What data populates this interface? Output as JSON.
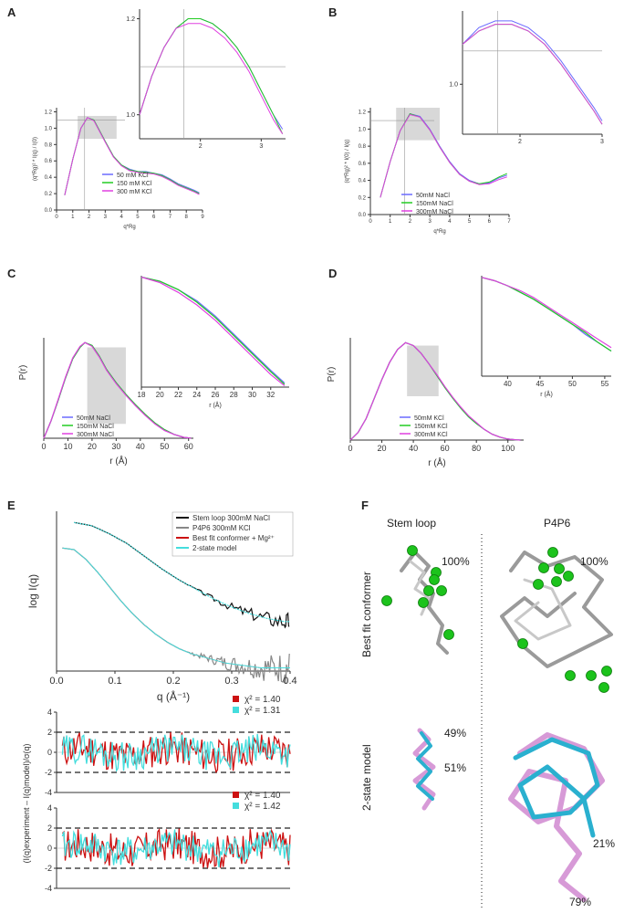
{
  "panels": {
    "A": "A",
    "B": "B",
    "C": "C",
    "D": "D",
    "E": "E",
    "F": "F"
  },
  "colors": {
    "blue": "#6a6aff",
    "green": "#22cc22",
    "magenta": "#e040e0",
    "black": "#111111",
    "gray": "#888888",
    "red": "#cc1111",
    "cyan": "#44dddd",
    "shade": "#d8d8d8"
  },
  "chart_data": [
    {
      "id": "A",
      "type": "line",
      "xlabel": "q*Rg",
      "ylabel": "(q*Rg)² * I(q) / I(0)",
      "xlim": [
        0,
        9
      ],
      "ylim": [
        0,
        1.25
      ],
      "xticks": [
        "0",
        "1",
        "2",
        "3",
        "4",
        "5",
        "6",
        "7",
        "8",
        "9"
      ],
      "yticks": [
        "0.0",
        "0.2",
        "0.4",
        "0.6",
        "0.8",
        "1.0",
        "1.2"
      ],
      "x": [
        0.5,
        1.0,
        1.5,
        1.9,
        2.3,
        3.0,
        3.5,
        4.0,
        4.5,
        5.0,
        5.5,
        6.0,
        6.5,
        7.0,
        7.5,
        8.0,
        8.5,
        8.8
      ],
      "series": [
        {
          "name": "50 mM KCl",
          "values": [
            0.18,
            0.62,
            1.0,
            1.13,
            1.1,
            0.84,
            0.66,
            0.55,
            0.5,
            0.47,
            0.47,
            0.45,
            0.43,
            0.38,
            0.32,
            0.28,
            0.24,
            0.21
          ]
        },
        {
          "name": "150 mM KCl",
          "values": [
            0.18,
            0.62,
            1.0,
            1.13,
            1.1,
            0.84,
            0.66,
            0.55,
            0.49,
            0.47,
            0.46,
            0.45,
            0.42,
            0.37,
            0.31,
            0.27,
            0.23,
            0.2
          ]
        },
        {
          "name": "300 mM KCl",
          "values": [
            0.18,
            0.62,
            1.0,
            1.13,
            1.09,
            0.83,
            0.65,
            0.54,
            0.48,
            0.46,
            0.45,
            0.44,
            0.41,
            0.36,
            0.3,
            0.26,
            0.22,
            0.19
          ]
        }
      ],
      "inset": {
        "xlim": [
          1.0,
          3.4
        ],
        "ylim": [
          0.95,
          1.22
        ],
        "xticks": [
          "2",
          "3"
        ],
        "yticks": [
          "1.0",
          "1.2"
        ],
        "x": [
          1.0,
          1.2,
          1.4,
          1.6,
          1.8,
          2.0,
          2.2,
          2.4,
          2.6,
          2.8,
          3.0,
          3.2,
          3.35
        ],
        "series": [
          {
            "name": "50 mM KCl",
            "values": [
              1.0,
              1.08,
              1.14,
              1.18,
              1.2,
              1.2,
              1.19,
              1.17,
              1.14,
              1.1,
              1.05,
              1.0,
              0.97
            ]
          },
          {
            "name": "150 mM KCl",
            "values": [
              1.0,
              1.08,
              1.14,
              1.18,
              1.2,
              1.2,
              1.19,
              1.17,
              1.14,
              1.1,
              1.05,
              1.0,
              0.96
            ]
          },
          {
            "name": "300 mM KCl",
            "values": [
              1.0,
              1.08,
              1.14,
              1.18,
              1.19,
              1.19,
              1.18,
              1.16,
              1.13,
              1.09,
              1.04,
              0.99,
              0.96
            ]
          }
        ]
      }
    },
    {
      "id": "B",
      "type": "line",
      "xlabel": "q*Rg",
      "ylabel": "(q*Rg)² * I(0) / I(q)",
      "xlim": [
        0,
        7
      ],
      "ylim": [
        0,
        1.25
      ],
      "xticks": [
        "0",
        "1",
        "2",
        "3",
        "4",
        "5",
        "6",
        "7"
      ],
      "yticks": [
        "0.0",
        "0.2",
        "0.4",
        "0.6",
        "0.8",
        "1.0",
        "1.2"
      ],
      "x": [
        0.5,
        1.0,
        1.5,
        2.0,
        2.5,
        3.0,
        3.5,
        4.0,
        4.5,
        5.0,
        5.5,
        6.0,
        6.5,
        6.9
      ],
      "series": [
        {
          "name": "50mM NaCl",
          "values": [
            0.2,
            0.62,
            0.98,
            1.18,
            1.15,
            1.0,
            0.8,
            0.62,
            0.48,
            0.4,
            0.36,
            0.37,
            0.43,
            0.46
          ]
        },
        {
          "name": "150mM NaCl",
          "values": [
            0.2,
            0.62,
            0.98,
            1.18,
            1.14,
            0.99,
            0.79,
            0.61,
            0.47,
            0.39,
            0.36,
            0.38,
            0.44,
            0.48
          ]
        },
        {
          "name": "300mM NaCl",
          "values": [
            0.2,
            0.62,
            0.98,
            1.17,
            1.14,
            0.99,
            0.79,
            0.61,
            0.47,
            0.39,
            0.35,
            0.36,
            0.41,
            0.44
          ]
        }
      ],
      "inset": {
        "xlim": [
          1.3,
          3.0
        ],
        "ylim": [
          0.85,
          1.22
        ],
        "xticks": [
          "2",
          "3"
        ],
        "yticks": [
          "1.0"
        ],
        "x": [
          1.3,
          1.5,
          1.7,
          1.9,
          2.1,
          2.3,
          2.5,
          2.7,
          2.9,
          3.0
        ],
        "series": [
          {
            "name": "50mM NaCl",
            "values": [
              1.12,
              1.17,
              1.19,
              1.19,
              1.17,
              1.13,
              1.07,
              1.0,
              0.93,
              0.89
            ]
          },
          {
            "name": "150mM NaCl",
            "values": [
              1.12,
              1.16,
              1.18,
              1.18,
              1.16,
              1.12,
              1.06,
              0.99,
              0.92,
              0.88
            ]
          },
          {
            "name": "300mM NaCl",
            "values": [
              1.12,
              1.16,
              1.18,
              1.18,
              1.16,
              1.12,
              1.06,
              0.99,
              0.92,
              0.88
            ]
          }
        ]
      }
    },
    {
      "id": "C",
      "type": "line",
      "xlabel": "r (Å)",
      "ylabel": "P(r)",
      "xlim": [
        0,
        62
      ],
      "ylim": [
        0,
        1.05
      ],
      "xticks": [
        "0",
        "10",
        "20",
        "30",
        "40",
        "50",
        "60"
      ],
      "x": [
        0,
        3,
        6,
        9,
        12,
        15,
        17,
        20,
        23,
        26,
        30,
        34,
        38,
        42,
        46,
        50,
        54,
        58,
        61
      ],
      "series": [
        {
          "name": "50mM NaCl",
          "values": [
            0,
            0.18,
            0.4,
            0.63,
            0.83,
            0.95,
            1.0,
            0.97,
            0.86,
            0.72,
            0.58,
            0.46,
            0.35,
            0.25,
            0.16,
            0.09,
            0.04,
            0.01,
            0
          ]
        },
        {
          "name": "150mM NaCl",
          "values": [
            0,
            0.18,
            0.4,
            0.63,
            0.83,
            0.95,
            1.0,
            0.97,
            0.86,
            0.72,
            0.58,
            0.46,
            0.35,
            0.25,
            0.16,
            0.09,
            0.04,
            0.01,
            0
          ]
        },
        {
          "name": "300mM NaCl",
          "values": [
            0,
            0.18,
            0.41,
            0.64,
            0.84,
            0.96,
            1.0,
            0.96,
            0.85,
            0.71,
            0.57,
            0.45,
            0.34,
            0.24,
            0.15,
            0.08,
            0.04,
            0.01,
            0
          ]
        }
      ],
      "inset": {
        "xlabel": "r (Å)",
        "xlim": [
          18,
          34
        ],
        "ylim": [
          0.2,
          1.0
        ],
        "xticks": [
          "18",
          "20",
          "22",
          "24",
          "26",
          "28",
          "30",
          "32"
        ],
        "x": [
          18,
          20,
          22,
          24,
          26,
          28,
          30,
          32,
          33.5
        ],
        "series": [
          {
            "name": "50mM NaCl",
            "values": [
              0.99,
              0.96,
              0.9,
              0.82,
              0.71,
              0.58,
              0.45,
              0.32,
              0.23
            ]
          },
          {
            "name": "150mM NaCl",
            "values": [
              0.99,
              0.96,
              0.9,
              0.81,
              0.7,
              0.57,
              0.44,
              0.31,
              0.22
            ]
          },
          {
            "name": "300mM NaCl",
            "values": [
              0.99,
              0.95,
              0.88,
              0.79,
              0.68,
              0.55,
              0.42,
              0.29,
              0.21
            ]
          }
        ]
      }
    },
    {
      "id": "D",
      "type": "line",
      "xlabel": "r (Å)",
      "ylabel": "P(r)",
      "xlim": [
        0,
        110
      ],
      "ylim": [
        0,
        1.05
      ],
      "xticks": [
        "0",
        "20",
        "40",
        "60",
        "80",
        "100"
      ],
      "x": [
        0,
        5,
        10,
        15,
        20,
        25,
        30,
        35,
        40,
        45,
        50,
        55,
        60,
        65,
        70,
        75,
        80,
        85,
        90,
        95,
        100,
        105,
        108
      ],
      "series": [
        {
          "name": "50mM KCl",
          "values": [
            0,
            0.08,
            0.22,
            0.42,
            0.62,
            0.8,
            0.93,
            1.0,
            0.97,
            0.89,
            0.78,
            0.66,
            0.54,
            0.43,
            0.33,
            0.24,
            0.17,
            0.11,
            0.06,
            0.03,
            0.01,
            0.003,
            0
          ]
        },
        {
          "name": "150mM KCl",
          "values": [
            0,
            0.08,
            0.22,
            0.42,
            0.62,
            0.8,
            0.93,
            1.0,
            0.97,
            0.89,
            0.78,
            0.66,
            0.54,
            0.43,
            0.33,
            0.24,
            0.17,
            0.11,
            0.06,
            0.03,
            0.01,
            0.003,
            0
          ]
        },
        {
          "name": "300mM KCl",
          "values": [
            0,
            0.08,
            0.22,
            0.42,
            0.62,
            0.8,
            0.93,
            1.0,
            0.97,
            0.89,
            0.78,
            0.67,
            0.55,
            0.44,
            0.34,
            0.25,
            0.18,
            0.11,
            0.06,
            0.03,
            0.01,
            0.003,
            0
          ]
        }
      ],
      "inset": {
        "xlabel": "r (Å)",
        "xlim": [
          36,
          56
        ],
        "ylim": [
          0.4,
          1.0
        ],
        "xticks": [
          "40",
          "45",
          "50",
          "55"
        ],
        "x": [
          36,
          38,
          40,
          42,
          44,
          46,
          48,
          50,
          52,
          54,
          56
        ],
        "series": [
          {
            "name": "50mM KCl",
            "values": [
              0.99,
              0.97,
              0.94,
              0.9,
              0.86,
              0.81,
              0.76,
              0.71,
              0.65,
              0.6,
              0.55
            ]
          },
          {
            "name": "150mM KCl",
            "values": [
              0.99,
              0.97,
              0.94,
              0.9,
              0.86,
              0.81,
              0.76,
              0.71,
              0.66,
              0.6,
              0.55
            ]
          },
          {
            "name": "300mM KCl",
            "values": [
              0.99,
              0.97,
              0.94,
              0.91,
              0.87,
              0.82,
              0.77,
              0.72,
              0.67,
              0.62,
              0.57
            ]
          }
        ]
      }
    },
    {
      "id": "E",
      "type": "line",
      "xlabel": "q (Å⁻¹)",
      "ylabel": "log I(q)",
      "xlim": [
        0,
        0.4
      ],
      "xticks": [
        "0.0",
        "0.1",
        "0.2",
        "0.3",
        "0.4"
      ],
      "series": [
        {
          "name": "Stem loop 300mM NaCl",
          "x": [
            0.03,
            0.06,
            0.09,
            0.12,
            0.15,
            0.18,
            0.21,
            0.24,
            0.27,
            0.3,
            0.33,
            0.36,
            0.39,
            0.4
          ],
          "values": [
            9.3,
            9.1,
            8.6,
            8.0,
            7.2,
            6.4,
            5.7,
            5.1,
            4.5,
            4.0,
            3.6,
            3.3,
            3.1,
            3.1
          ]
        },
        {
          "name": "P4P6 300mM KCl",
          "x": [
            0.01,
            0.03,
            0.05,
            0.07,
            0.09,
            0.11,
            0.13,
            0.15,
            0.17,
            0.19,
            0.21,
            0.23,
            0.25,
            0.27,
            0.29,
            0.31,
            0.33,
            0.35,
            0.37,
            0.39,
            0.4
          ],
          "values": [
            7.7,
            7.6,
            7.0,
            6.2,
            5.3,
            4.4,
            3.6,
            2.9,
            2.3,
            1.8,
            1.4,
            1.1,
            0.9,
            0.7,
            0.5,
            0.4,
            0.3,
            0.2,
            0.2,
            0.2,
            0.2
          ]
        },
        {
          "name": "Best fit conformer + Mg²⁺"
        },
        {
          "name": "2-state model"
        }
      ],
      "residuals": [
        {
          "chi_red": "χ² = 1.40",
          "chi_cyan": "χ² = 1.31",
          "ylim": [
            -4,
            4
          ],
          "yticks": [
            "4",
            "2",
            "0",
            "-2",
            "-4"
          ]
        },
        {
          "chi_red": "χ² = 1.40",
          "chi_cyan": "χ² = 1.42",
          "ylim": [
            -4,
            4
          ],
          "yticks": [
            "4",
            "2",
            "0",
            "-2",
            "-4"
          ]
        }
      ],
      "residual_ylabel": "(I(q)experiment – I(q)model)/σ(q)"
    }
  ],
  "F": {
    "col1": "Stem loop",
    "col2": "P4P6",
    "row1": "Best fit conformer",
    "row2": "2-state  model",
    "pct_stem_best": "100%",
    "pct_p4_best": "100%",
    "pct_stem_49": "49%",
    "pct_stem_51": "51%",
    "pct_p4_21": "21%",
    "pct_p4_79": "79%"
  }
}
